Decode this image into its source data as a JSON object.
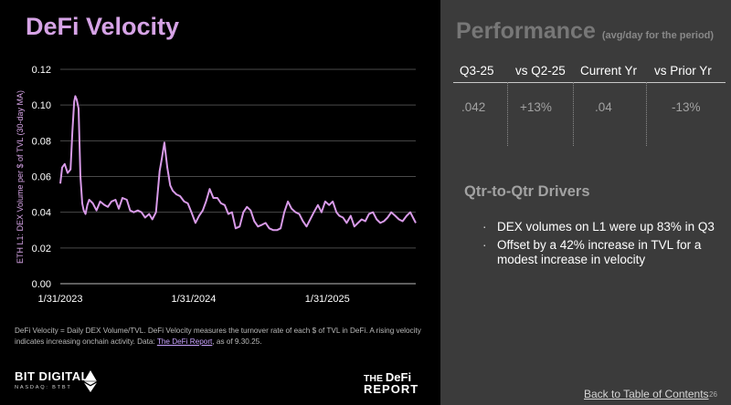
{
  "left": {
    "title": "DeFi Velocity",
    "footnote_text": "DeFi Velocity = Daily DEX Volume/TVL. DeFi Velocity measures the turnover rate of each $ of TVL in DeFi. A rising velocity indicates increasing onchain activity.  Data: ",
    "footnote_link": "The DeFi Report",
    "footnote_suffix": ", as of 9.30.25."
  },
  "logos": {
    "bit_digital_name": "BIT DIGITAL",
    "bit_digital_ticker": "NASDAQ: BTBT",
    "defi_report_line1_a": "THE ",
    "defi_report_line1_b": "DeFi",
    "defi_report_line2": "REPORT"
  },
  "performance": {
    "title": "Performance",
    "subtitle": "(avg/day for the period)",
    "headers": [
      "Q3-25",
      "vs Q2-25",
      "Current Yr",
      "vs Prior Yr"
    ],
    "values": [
      ".042",
      "+13%",
      ".04",
      "-13%"
    ]
  },
  "drivers": {
    "title": "Qtr-to-Qtr Drivers",
    "bullets": [
      "DEX volumes on L1 were up 83% in Q3",
      "Offset by a 42% increase in TVL for a modest increase in velocity"
    ]
  },
  "footer": {
    "toc_link": "Back to Table of Contents",
    "page_number": "26"
  },
  "colors": {
    "accent": "#d6a3e6",
    "line": "#d89ae8",
    "right_panel": "#3b3b3b"
  },
  "chart_data": {
    "type": "line",
    "ylabel": "ETH L1: DEX Volume per $ of TVL (30-day MA)",
    "xlabel": "",
    "title": "",
    "ylim": [
      0,
      0.12
    ],
    "yticks": [
      0.0,
      0.02,
      0.04,
      0.06,
      0.08,
      0.1,
      0.12
    ],
    "ytick_labels": [
      "0.00",
      "0.02",
      "0.04",
      "0.06",
      "0.08",
      "0.10",
      "0.12"
    ],
    "xlim": [
      "2023-01-31",
      "2025-09-30"
    ],
    "xticks": [
      "2023-01-31",
      "2024-01-31",
      "2025-01-31"
    ],
    "xtick_labels": [
      "1/31/2023",
      "1/31/2024",
      "1/31/2025"
    ],
    "grid": true,
    "series": [
      {
        "name": "",
        "x": [
          "2023-01-31",
          "2023-02-05",
          "2023-02-12",
          "2023-02-20",
          "2023-02-28",
          "2023-03-05",
          "2023-03-10",
          "2023-03-13",
          "2023-03-17",
          "2023-03-22",
          "2023-03-27",
          "2023-04-01",
          "2023-04-05",
          "2023-04-10",
          "2023-04-15",
          "2023-04-20",
          "2023-04-30",
          "2023-05-10",
          "2023-05-20",
          "2023-06-01",
          "2023-06-10",
          "2023-06-20",
          "2023-07-01",
          "2023-07-10",
          "2023-07-20",
          "2023-08-01",
          "2023-08-10",
          "2023-08-20",
          "2023-08-31",
          "2023-09-10",
          "2023-09-20",
          "2023-10-01",
          "2023-10-10",
          "2023-10-20",
          "2023-10-30",
          "2023-11-05",
          "2023-11-12",
          "2023-11-20",
          "2023-11-28",
          "2023-12-05",
          "2023-12-15",
          "2023-12-25",
          "2024-01-05",
          "2024-01-15",
          "2024-01-25",
          "2024-02-05",
          "2024-02-15",
          "2024-02-25",
          "2024-03-05",
          "2024-03-15",
          "2024-03-25",
          "2024-04-05",
          "2024-04-15",
          "2024-04-25",
          "2024-05-05",
          "2024-05-15",
          "2024-05-25",
          "2024-06-05",
          "2024-06-15",
          "2024-06-25",
          "2024-07-05",
          "2024-07-15",
          "2024-07-25",
          "2024-08-05",
          "2024-08-15",
          "2024-08-25",
          "2024-09-05",
          "2024-09-15",
          "2024-09-25",
          "2024-10-05",
          "2024-10-15",
          "2024-10-25",
          "2024-11-05",
          "2024-11-15",
          "2024-11-25",
          "2024-12-05",
          "2024-12-15",
          "2024-12-25",
          "2025-01-05",
          "2025-01-15",
          "2025-01-25",
          "2025-02-05",
          "2025-02-15",
          "2025-02-25",
          "2025-03-05",
          "2025-03-15",
          "2025-03-25",
          "2025-04-05",
          "2025-04-15",
          "2025-04-25",
          "2025-05-05",
          "2025-05-15",
          "2025-05-25",
          "2025-06-05",
          "2025-06-15",
          "2025-06-25",
          "2025-07-05",
          "2025-07-15",
          "2025-07-25",
          "2025-08-05",
          "2025-08-15",
          "2025-08-25",
          "2025-09-05",
          "2025-09-15",
          "2025-09-25",
          "2025-09-30"
        ],
        "y": [
          0.056,
          0.065,
          0.067,
          0.062,
          0.064,
          0.085,
          0.102,
          0.105,
          0.103,
          0.098,
          0.06,
          0.045,
          0.041,
          0.039,
          0.044,
          0.047,
          0.045,
          0.041,
          0.046,
          0.044,
          0.043,
          0.046,
          0.047,
          0.042,
          0.048,
          0.047,
          0.041,
          0.04,
          0.041,
          0.04,
          0.037,
          0.039,
          0.036,
          0.04,
          0.063,
          0.07,
          0.079,
          0.065,
          0.055,
          0.052,
          0.05,
          0.049,
          0.046,
          0.045,
          0.04,
          0.034,
          0.038,
          0.041,
          0.046,
          0.053,
          0.048,
          0.048,
          0.045,
          0.044,
          0.039,
          0.04,
          0.031,
          0.032,
          0.04,
          0.043,
          0.041,
          0.035,
          0.032,
          0.033,
          0.034,
          0.031,
          0.03,
          0.03,
          0.031,
          0.04,
          0.046,
          0.042,
          0.04,
          0.039,
          0.035,
          0.032,
          0.036,
          0.04,
          0.044,
          0.04,
          0.046,
          0.044,
          0.046,
          0.04,
          0.038,
          0.037,
          0.034,
          0.038,
          0.032,
          0.034,
          0.036,
          0.035,
          0.039,
          0.04,
          0.036,
          0.034,
          0.035,
          0.037,
          0.04,
          0.038,
          0.036,
          0.035,
          0.038,
          0.04,
          0.036,
          0.034
        ]
      }
    ]
  }
}
